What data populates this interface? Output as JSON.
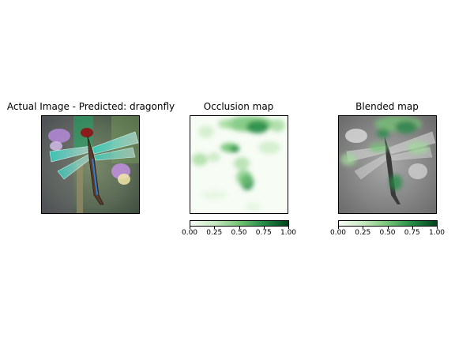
{
  "figure": {
    "panels": [
      {
        "id": "actual",
        "title": "Actual Image - Predicted: dragonfly"
      },
      {
        "id": "occlusion",
        "title": "Occlusion map"
      },
      {
        "id": "blended",
        "title": "Blended map"
      }
    ]
  },
  "chart_data": {
    "type": "heatmap",
    "colormap": "Greens",
    "colorbar": {
      "range": [
        0,
        1
      ],
      "ticks": [
        "0.00",
        "0.25",
        "0.50",
        "0.75",
        "1.00"
      ]
    }
  },
  "colors": {
    "greens": [
      "#f7fcf5",
      "#c7e9c0",
      "#74c476",
      "#238b45",
      "#00441b"
    ]
  }
}
